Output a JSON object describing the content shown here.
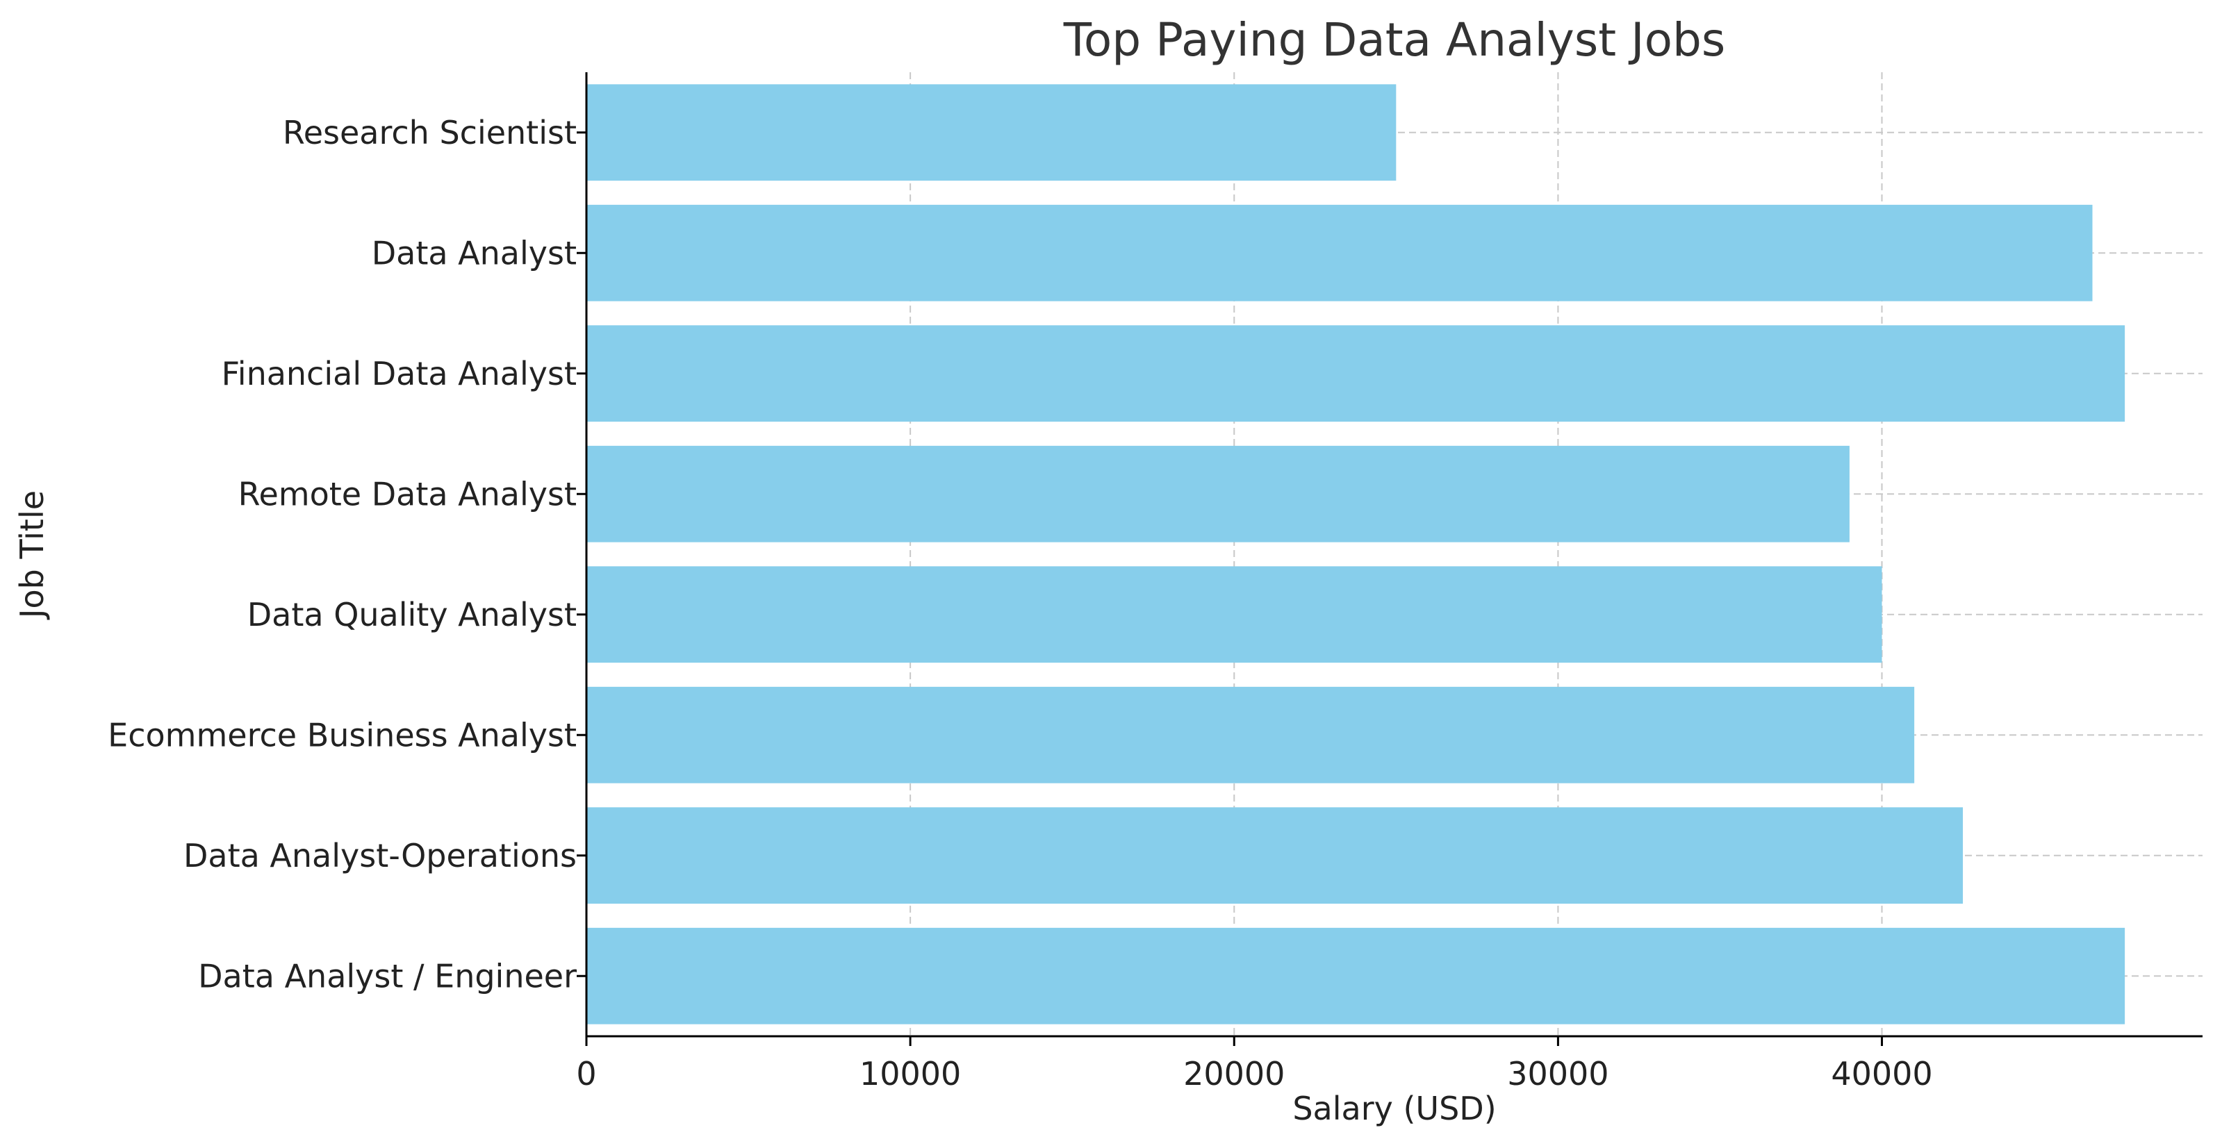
{
  "chart_data": {
    "type": "bar",
    "orientation": "horizontal",
    "title": "Top Paying Data Analyst Jobs",
    "xlabel": "Salary (USD)",
    "ylabel": "Job Title",
    "categories": [
      "Research Scientist",
      "Data Analyst",
      "Financial Data Analyst",
      "Remote Data Analyst",
      "Data Quality Analyst",
      "Ecommerce Business Analyst",
      "Data Analyst-Operations",
      "Data Analyst / Engineer"
    ],
    "values": [
      25000,
      46500,
      47500,
      39000,
      40000,
      41000,
      42500,
      47500
    ],
    "xlim": [
      0,
      49900
    ],
    "xticks": [
      0,
      10000,
      20000,
      30000,
      40000
    ],
    "grid": true,
    "bar_color": "#87ceeb"
  }
}
